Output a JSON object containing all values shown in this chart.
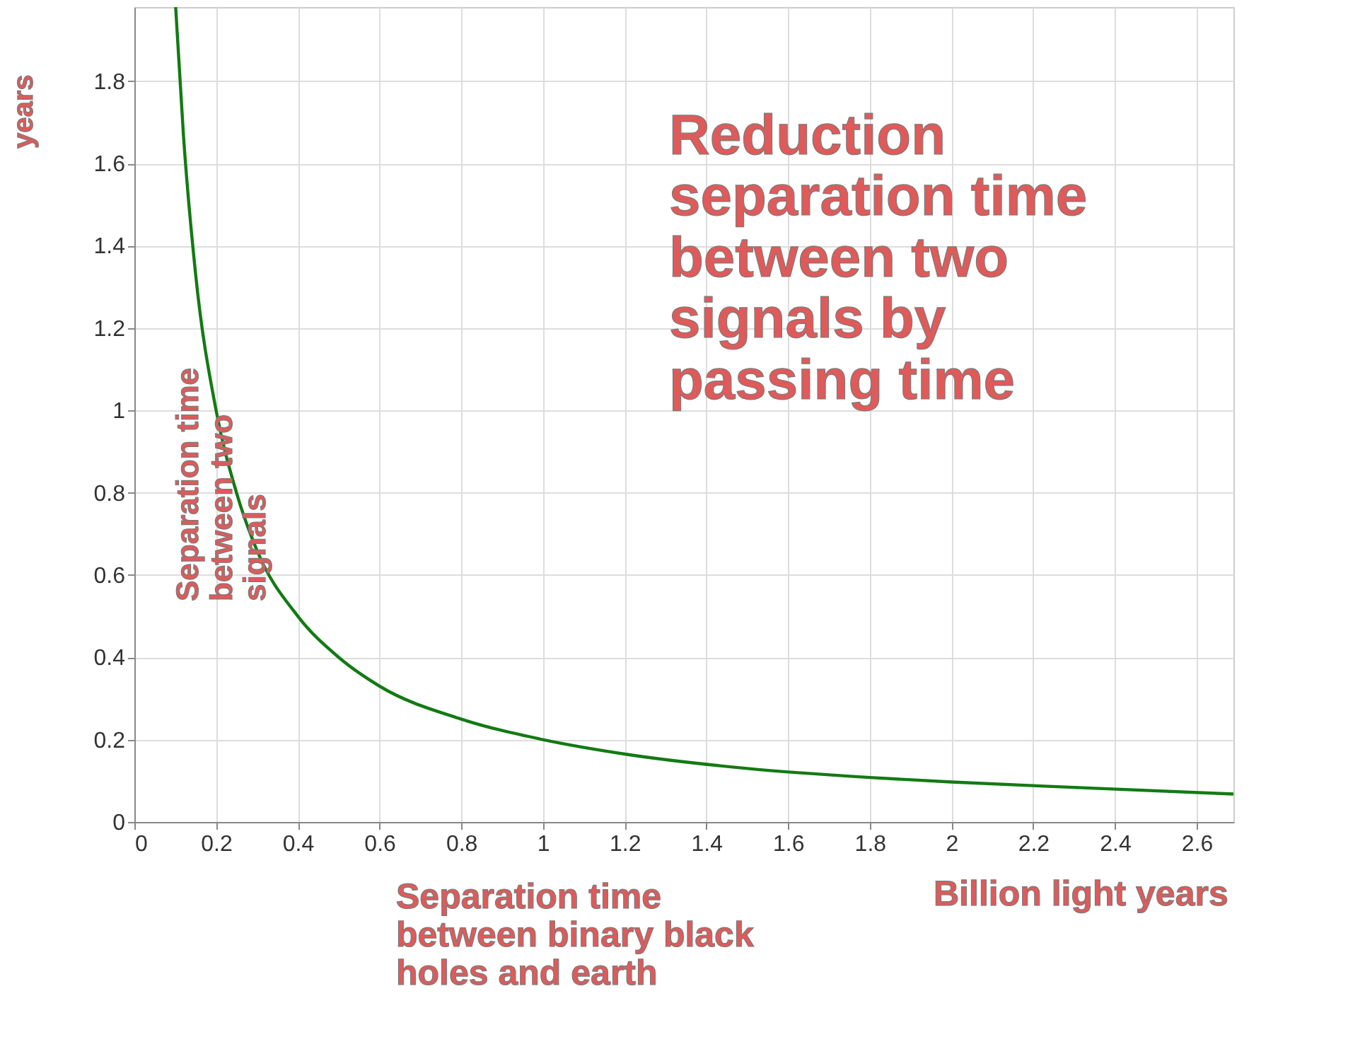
{
  "chart_data": {
    "type": "line",
    "xlabel": "Billion  light years",
    "ylabel": "years",
    "x": [
      0.101,
      0.12,
      0.15,
      0.2,
      0.25,
      0.3,
      0.4,
      0.5,
      0.6,
      0.8,
      1.0,
      1.2,
      1.5,
      1.8,
      2.0,
      2.3,
      2.69
    ],
    "series": [
      {
        "color": "#137a13",
        "values": [
          1.98,
          1.67,
          1.33,
          1.0,
          0.8,
          0.66,
          0.5,
          0.4,
          0.33,
          0.25,
          0.2,
          0.165,
          0.13,
          0.108,
          0.097,
          0.084,
          0.068
        ]
      }
    ],
    "xlim": [
      0,
      2.69
    ],
    "ylim": [
      0,
      1.98
    ],
    "xticks": [
      0,
      0.2,
      0.4,
      0.6,
      0.8,
      1,
      1.2,
      1.4,
      1.6,
      1.8,
      2,
      2.2,
      2.4,
      2.6
    ],
    "yticks": [
      0,
      0.2,
      0.4,
      0.6,
      0.8,
      1,
      1.2,
      1.4,
      1.6,
      1.8
    ],
    "annotations": [
      "Reduction separation time between two signals by passing time",
      "Separation time between two signals",
      "Separation time between binary black holes and earth"
    ],
    "grid": true,
    "marker": "none",
    "line_style": "solid"
  }
}
